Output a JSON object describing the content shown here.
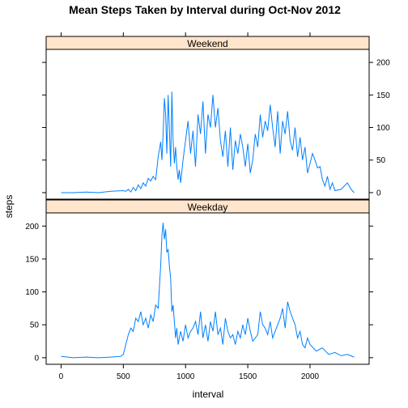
{
  "chart_data": {
    "type": "line",
    "title": "Mean Steps Taken by Interval during Oct-Nov 2012",
    "xlabel": "interval",
    "ylabel": "steps",
    "xlim": [
      -120,
      2475
    ],
    "ylim": [
      -10,
      220
    ],
    "x_ticks": [
      0,
      500,
      1000,
      1500,
      2000
    ],
    "y_ticks": [
      0,
      50,
      100,
      150,
      200
    ],
    "line_color": "#0080ff",
    "strip_color": "#ffe5cc",
    "grid": false,
    "panels": [
      {
        "name": "Weekend",
        "x": [
          0,
          100,
          200,
          300,
          400,
          500,
          520,
          540,
          560,
          580,
          600,
          620,
          640,
          660,
          680,
          700,
          720,
          740,
          760,
          780,
          800,
          810,
          820,
          830,
          840,
          850,
          860,
          870,
          880,
          890,
          900,
          910,
          920,
          930,
          940,
          950,
          960,
          980,
          1000,
          1020,
          1040,
          1060,
          1080,
          1100,
          1120,
          1140,
          1160,
          1180,
          1200,
          1220,
          1240,
          1260,
          1280,
          1300,
          1320,
          1340,
          1360,
          1380,
          1400,
          1420,
          1440,
          1460,
          1480,
          1500,
          1520,
          1540,
          1560,
          1580,
          1600,
          1620,
          1640,
          1660,
          1680,
          1700,
          1720,
          1740,
          1760,
          1780,
          1800,
          1820,
          1840,
          1860,
          1880,
          1900,
          1920,
          1940,
          1960,
          1980,
          2000,
          2020,
          2040,
          2060,
          2080,
          2100,
          2120,
          2140,
          2160,
          2180,
          2200,
          2250,
          2300,
          2330,
          2355
        ],
        "values": [
          0,
          0,
          1,
          0,
          2,
          3,
          2,
          5,
          1,
          8,
          3,
          12,
          6,
          15,
          10,
          22,
          18,
          25,
          20,
          55,
          78,
          50,
          90,
          145,
          120,
          60,
          150,
          100,
          40,
          155,
          80,
          45,
          70,
          40,
          20,
          35,
          15,
          50,
          80,
          110,
          60,
          95,
          40,
          120,
          90,
          140,
          60,
          120,
          100,
          150,
          100,
          130,
          80,
          55,
          95,
          40,
          100,
          35,
          80,
          60,
          90,
          70,
          40,
          75,
          30,
          50,
          90,
          70,
          120,
          85,
          110,
          95,
          135,
          100,
          70,
          125,
          60,
          110,
          90,
          125,
          80,
          65,
          100,
          55,
          85,
          50,
          70,
          30,
          45,
          60,
          50,
          38,
          40,
          20,
          10,
          25,
          5,
          15,
          3,
          5,
          15,
          5,
          0
        ]
      },
      {
        "name": "Weekday",
        "x": [
          0,
          100,
          200,
          300,
          400,
          480,
          500,
          520,
          540,
          560,
          580,
          600,
          620,
          640,
          660,
          680,
          700,
          720,
          740,
          760,
          780,
          800,
          810,
          820,
          830,
          840,
          850,
          860,
          870,
          880,
          890,
          900,
          910,
          920,
          930,
          940,
          960,
          980,
          1000,
          1020,
          1040,
          1060,
          1080,
          1100,
          1120,
          1140,
          1160,
          1180,
          1200,
          1220,
          1240,
          1260,
          1280,
          1300,
          1320,
          1340,
          1360,
          1380,
          1400,
          1420,
          1440,
          1460,
          1480,
          1500,
          1520,
          1540,
          1560,
          1580,
          1600,
          1620,
          1640,
          1660,
          1680,
          1700,
          1720,
          1740,
          1760,
          1780,
          1800,
          1820,
          1840,
          1860,
          1880,
          1900,
          1920,
          1940,
          1960,
          1980,
          2000,
          2050,
          2100,
          2150,
          2200,
          2250,
          2300,
          2355
        ],
        "values": [
          2,
          0,
          1,
          0,
          1,
          2,
          5,
          20,
          35,
          45,
          40,
          60,
          55,
          70,
          50,
          60,
          45,
          65,
          55,
          80,
          75,
          140,
          185,
          205,
          180,
          195,
          160,
          165,
          140,
          120,
          70,
          80,
          55,
          30,
          45,
          20,
          40,
          25,
          50,
          30,
          40,
          45,
          55,
          35,
          70,
          30,
          50,
          25,
          55,
          40,
          70,
          35,
          45,
          20,
          60,
          40,
          30,
          35,
          20,
          40,
          30,
          50,
          35,
          60,
          40,
          25,
          30,
          35,
          70,
          50,
          45,
          35,
          55,
          30,
          40,
          50,
          60,
          75,
          45,
          85,
          70,
          60,
          50,
          30,
          40,
          20,
          15,
          30,
          20,
          10,
          15,
          5,
          8,
          3,
          5,
          1
        ]
      }
    ]
  }
}
